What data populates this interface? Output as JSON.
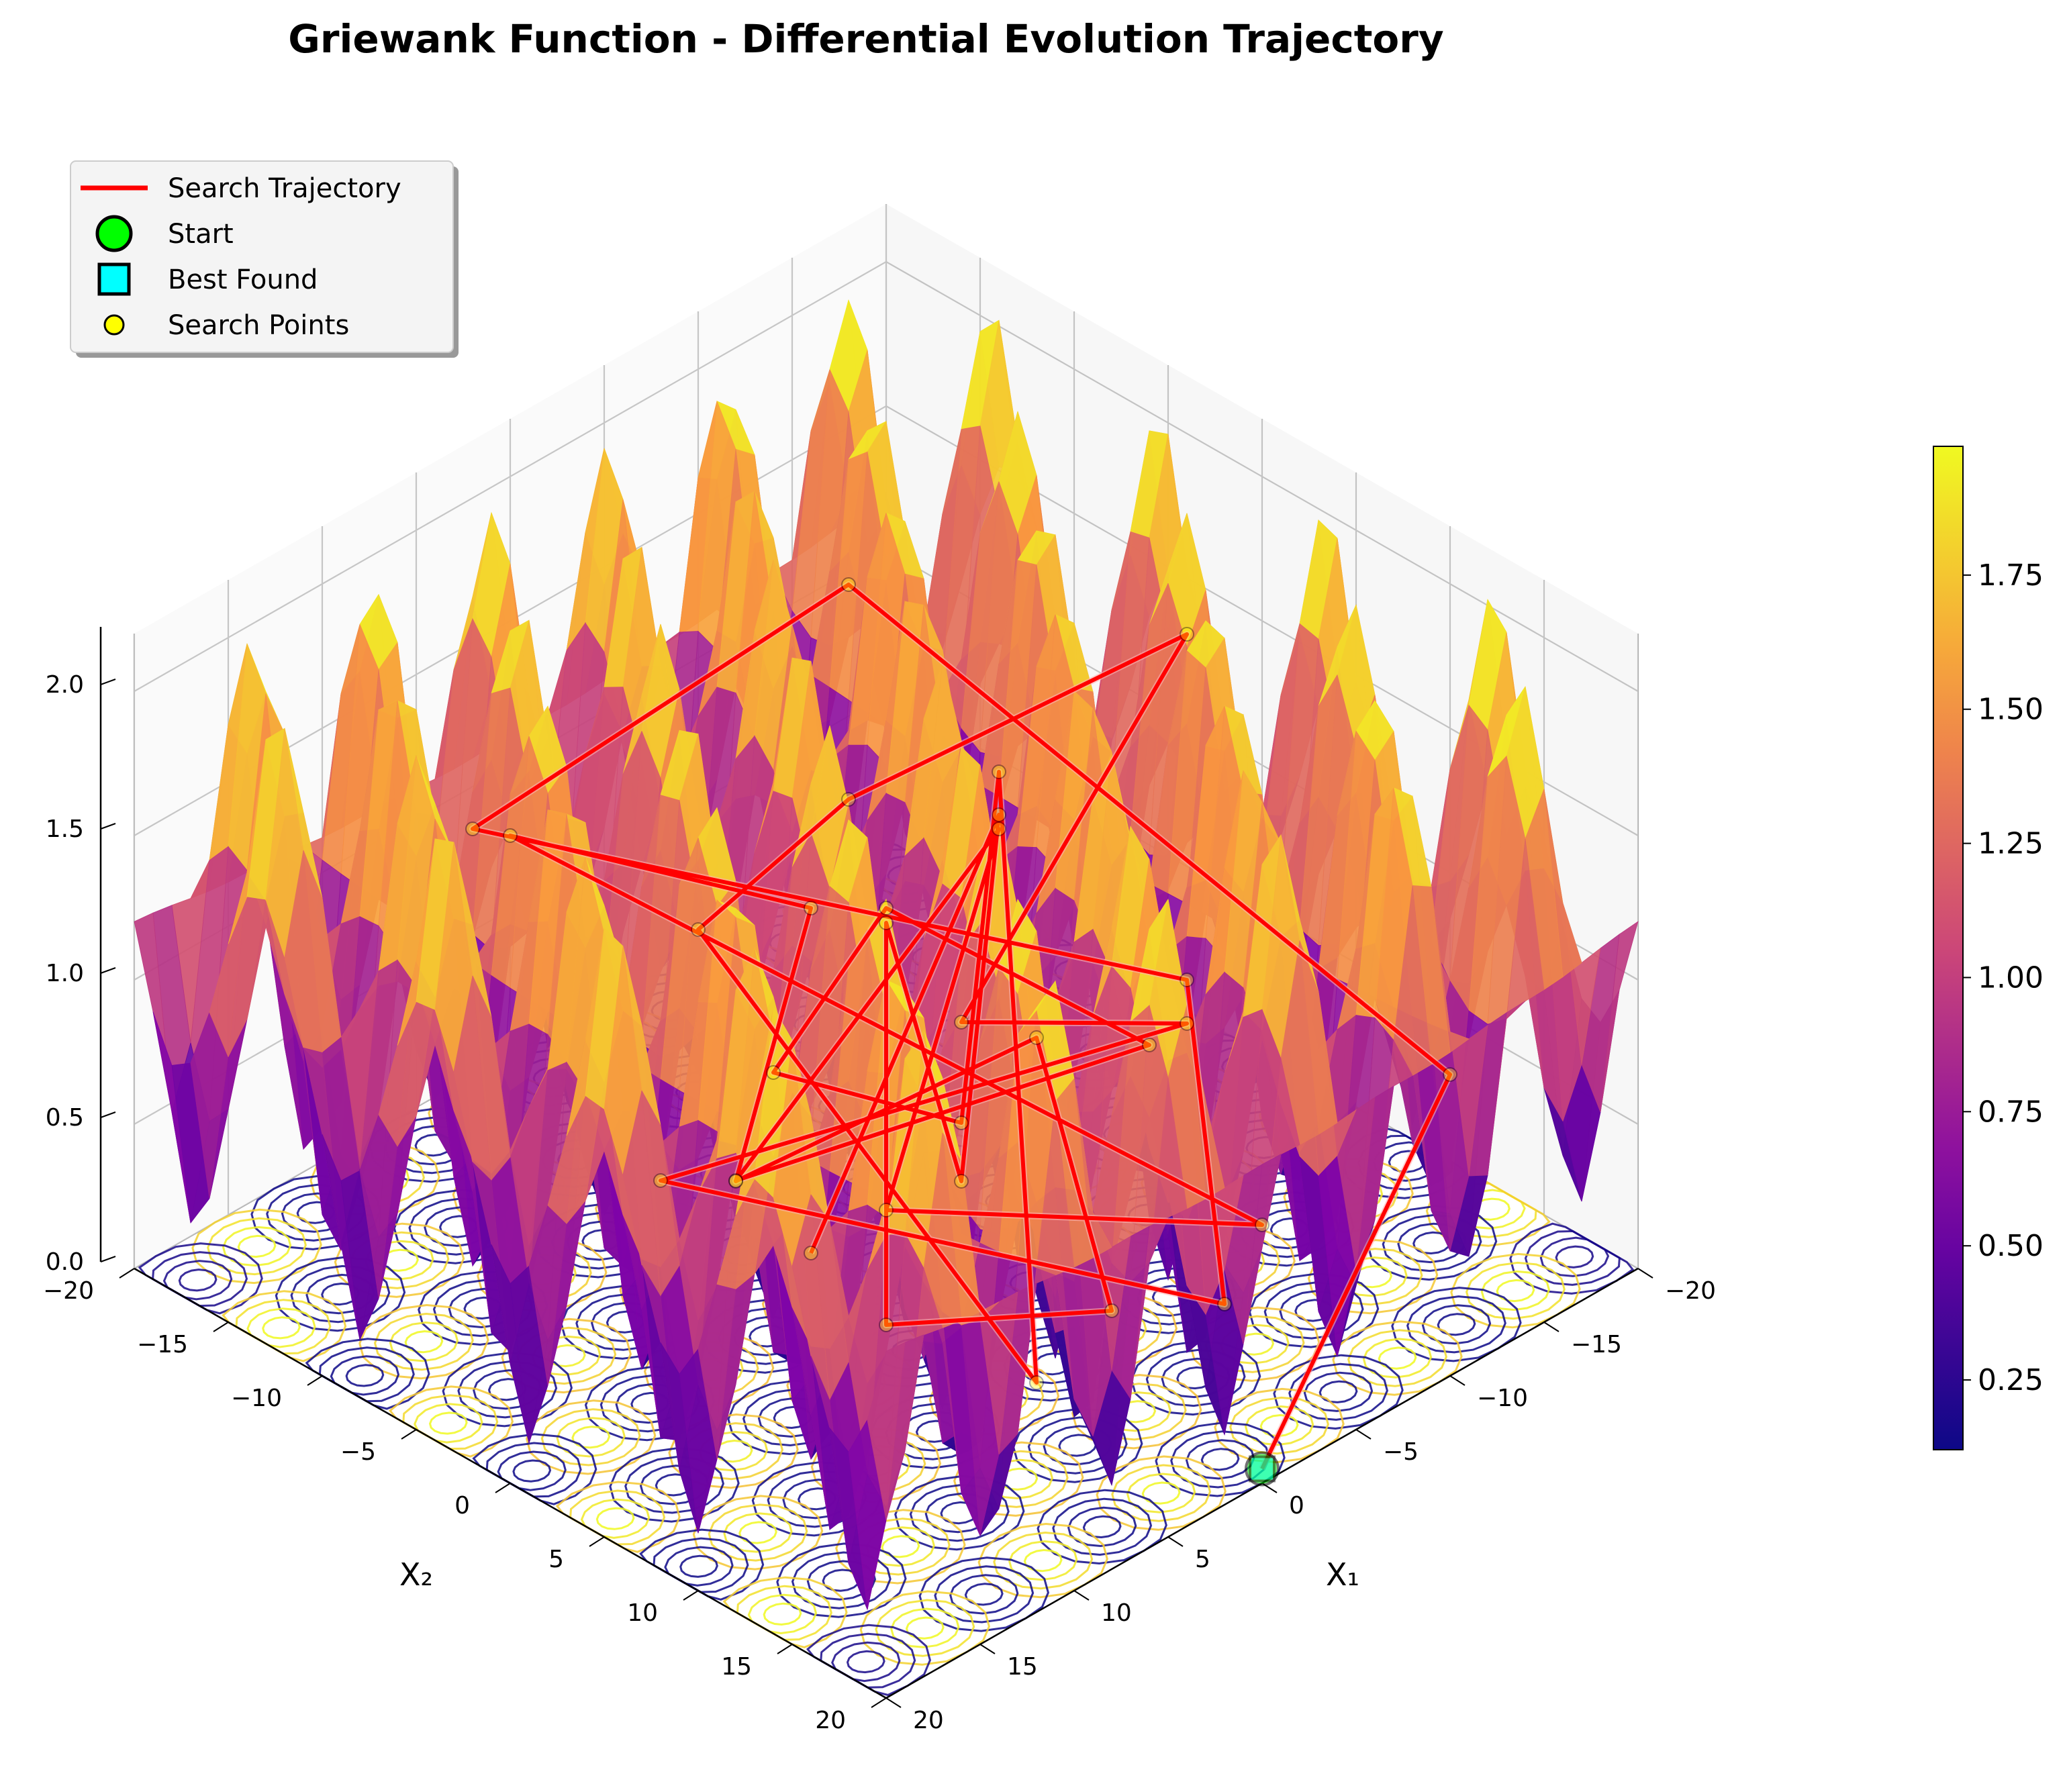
{
  "chart_data": {
    "type": "surface3d",
    "title": "Griewank Function - Differential Evolution Trajectory",
    "function": "griewank",
    "xlabel": "X₁",
    "ylabel": "X₂",
    "zlabel": "",
    "xlim": [
      -20,
      20
    ],
    "ylim": [
      -20,
      20
    ],
    "zlim": [
      0,
      2.2
    ],
    "x_ticks": [
      "−20",
      "−15",
      "−10",
      "−5",
      "0",
      "5",
      "10",
      "15",
      "20"
    ],
    "y_ticks": [
      "−20",
      "−15",
      "−10",
      "−5",
      "0",
      "5",
      "10",
      "15",
      "20"
    ],
    "z_ticks": [
      "0.0",
      "0.5",
      "1.0",
      "1.5",
      "2.0"
    ],
    "colormap": "plasma",
    "colorbar": {
      "min": 0.12,
      "max": 1.99,
      "ticks": [
        "0.25",
        "0.50",
        "0.75",
        "1.00",
        "1.25",
        "1.50",
        "1.75"
      ]
    },
    "grid": true,
    "legend": {
      "placement": "top-left",
      "entries": [
        {
          "label": "Search Trajectory",
          "marker": "line",
          "color": "#ff0000"
        },
        {
          "label": "Start",
          "marker": "circle",
          "color": "#00ff00"
        },
        {
          "label": "Best Found",
          "marker": "square",
          "color": "#00ffff"
        },
        {
          "label": "Search Points",
          "marker": "circle",
          "color": "#ffff00"
        }
      ]
    },
    "trajectory": {
      "color": "#ff0000",
      "start": [
        0,
        20,
        0.05
      ],
      "best_found": [
        0,
        20,
        0.05
      ],
      "points": [
        [
          0,
          20,
          0.05
        ],
        [
          -20,
          10,
          0.3
        ],
        [
          -8,
          -10,
          1.7
        ],
        [
          8,
          -14,
          1.3
        ],
        [
          -8,
          8,
          1.0
        ],
        [
          -6,
          12,
          0.1
        ],
        [
          14,
          2,
          0.9
        ],
        [
          -10,
          6,
          0.7
        ],
        [
          4,
          8,
          1.3
        ],
        [
          -12,
          4,
          1.9
        ],
        [
          2,
          0,
          1.7
        ],
        [
          4,
          -6,
          1.1
        ],
        [
          4,
          12,
          0.2
        ],
        [
          -10,
          -4,
          1.2
        ],
        [
          6,
          10,
          1.1
        ],
        [
          10,
          4,
          1.2
        ],
        [
          -2,
          -2,
          1.1
        ],
        [
          -8,
          6,
          0.7
        ],
        [
          12,
          4,
          0.9
        ],
        [
          -6,
          0,
          1.3
        ],
        [
          4,
          4,
          0.5
        ],
        [
          -8,
          12,
          0.3
        ],
        [
          10,
          -10,
          1.5
        ],
        [
          0,
          -4,
          1.1
        ],
        [
          8,
          0,
          0.6
        ],
        [
          -4,
          4,
          0.8
        ],
        [
          0,
          12,
          0.3
        ],
        [
          8,
          8,
          0.4
        ],
        [
          -4,
          -4,
          0.9
        ],
        [
          2,
          6,
          0.6
        ],
        [
          -8,
          -2,
          1.2
        ],
        [
          8,
          4,
          0.5
        ]
      ]
    }
  }
}
